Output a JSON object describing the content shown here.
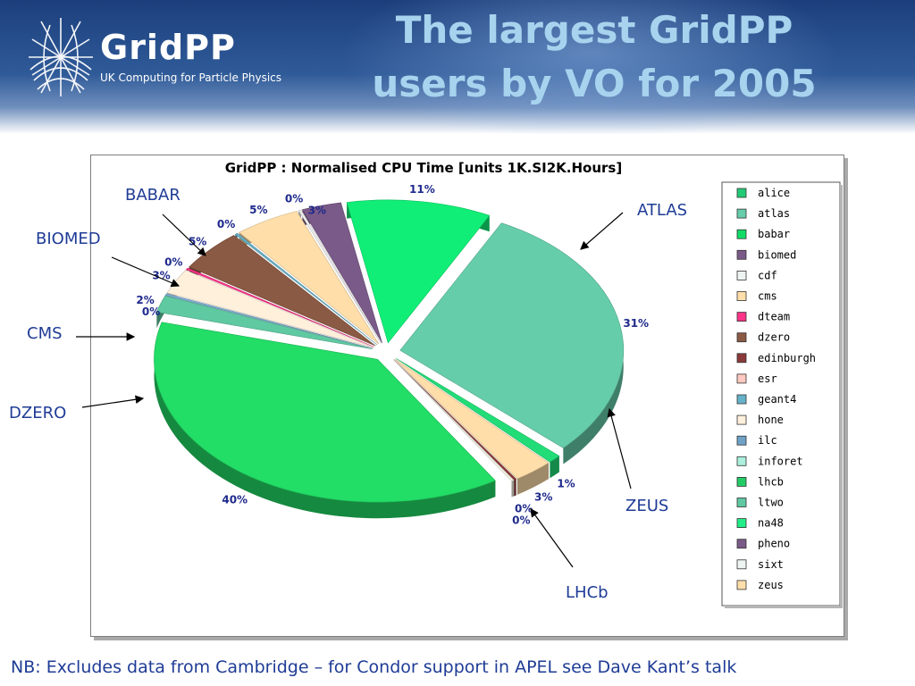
{
  "header": {
    "logo_name": "GridPP",
    "logo_subtitle": "UK Computing for Particle Physics",
    "title_line1": "The largest GridPP",
    "title_line2": "users by VO for 2005"
  },
  "footer": {
    "note": "NB: Excludes data from Cambridge – for Condor support in APEL see Dave Kant’s talk"
  },
  "callouts": {
    "babar": "BABAR",
    "atlas": "ATLAS",
    "biomed": "BIOMED",
    "cms": "CMS",
    "dzero": "DZERO",
    "zeus": "ZEUS",
    "lhcb": "LHCb"
  },
  "chart_data": {
    "type": "pie",
    "title": "GridPP : Normalised CPU Time [units 1K.SI2K.Hours]",
    "value_unit": "%",
    "legend_position": "right",
    "exploded": true,
    "three_d": true,
    "slices": [
      {
        "label": "atlas",
        "value": 31,
        "value_label": "31%",
        "color": "#66cdaa"
      },
      {
        "label": "alice",
        "value": 1,
        "value_label": "1%",
        "color": "#22dd77"
      },
      {
        "label": "zeus",
        "value": 3,
        "value_label": "3%",
        "color": "#ffdeaa"
      },
      {
        "label": "edinburgh",
        "value": 0,
        "value_label": "0%",
        "color": "#8b3a3a"
      },
      {
        "label": "sixt",
        "value": 0,
        "value_label": "0%",
        "color": "#f2f2e4"
      },
      {
        "label": "lhcb",
        "value": 40,
        "value_label": "40%",
        "color": "#22dd66"
      },
      {
        "label": "ltwo",
        "value": 2,
        "value_label": "2%",
        "color": "#5fc9a2"
      },
      {
        "label": "ilc",
        "value": 0,
        "value_label": "0%",
        "color": "#7fb2d6"
      },
      {
        "label": "hone",
        "value": 3,
        "value_label": "3%",
        "color": "#fff0dc"
      },
      {
        "label": "dteam",
        "value": 0,
        "value_label": "0%",
        "color": "#ff3388"
      },
      {
        "label": "dzero",
        "value": 5,
        "value_label": "5%",
        "color": "#8b5a44"
      },
      {
        "label": "geant4",
        "value": 0,
        "value_label": "0%",
        "color": "#66b2c8"
      },
      {
        "label": "cms",
        "value": 5,
        "value_label": "5%",
        "color": "#ffdeaa"
      },
      {
        "label": "cdf",
        "value": 0,
        "value_label": "0%",
        "color": "#eeeeee"
      },
      {
        "label": "biomed",
        "value": 3,
        "value_label": "3%",
        "color": "#7a5a88"
      },
      {
        "label": "babar",
        "value": 11,
        "value_label": "11%",
        "color": "#11ee77"
      }
    ],
    "legend": [
      {
        "label": "alice",
        "color": "#22cc77"
      },
      {
        "label": "atlas",
        "color": "#66cdaa"
      },
      {
        "label": "babar",
        "color": "#11dd66"
      },
      {
        "label": "biomed",
        "color": "#7a5a88"
      },
      {
        "label": "cdf",
        "color": "#eef4f2"
      },
      {
        "label": "cms",
        "color": "#ffdeaa"
      },
      {
        "label": "dteam",
        "color": "#ff3388"
      },
      {
        "label": "dzero",
        "color": "#8b5a44"
      },
      {
        "label": "edinburgh",
        "color": "#8b3a3a"
      },
      {
        "label": "esr",
        "color": "#ffc8c0"
      },
      {
        "label": "geant4",
        "color": "#66b2c8"
      },
      {
        "label": "hone",
        "color": "#fff0dc"
      },
      {
        "label": "ilc",
        "color": "#6fa2c8"
      },
      {
        "label": "inforet",
        "color": "#aaf0dc"
      },
      {
        "label": "lhcb",
        "color": "#22cc66"
      },
      {
        "label": "ltwo",
        "color": "#5fc9a2"
      },
      {
        "label": "na48",
        "color": "#22ee88"
      },
      {
        "label": "pheno",
        "color": "#7a5a88"
      },
      {
        "label": "sixt",
        "color": "#eef4f2"
      },
      {
        "label": "zeus",
        "color": "#ffdeaa"
      }
    ]
  }
}
